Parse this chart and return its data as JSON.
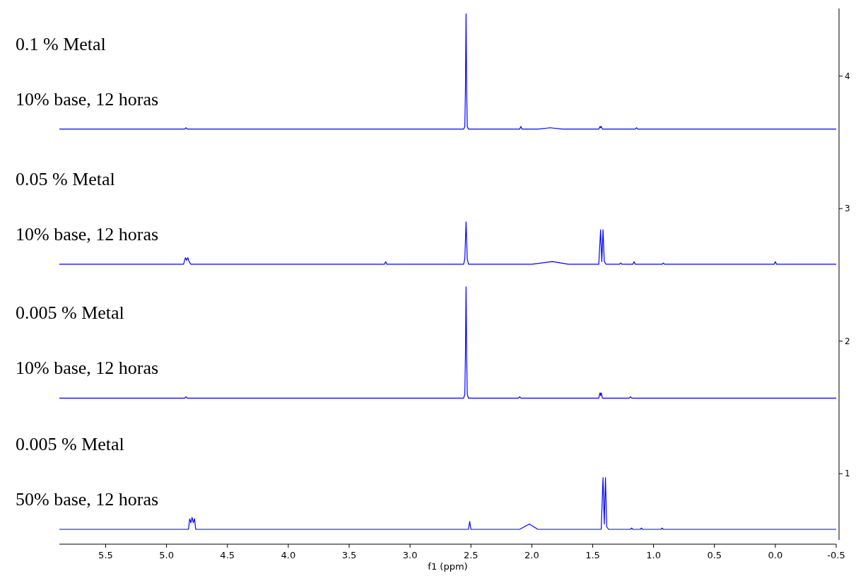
{
  "chart_data": {
    "type": "line",
    "xlabel": "f1 (ppm)",
    "xlim": [
      5.88,
      -0.5
    ],
    "xticks": [
      5.5,
      {
        "value": 5,
        "label": "5.0"
      },
      4.5,
      {
        "value": 4,
        "label": "4.0"
      },
      3.5,
      {
        "value": 3,
        "label": "3.0"
      },
      2.5,
      {
        "value": 2,
        "label": "2.0"
      },
      1.5,
      {
        "value": 1,
        "label": "1.0"
      },
      0.5,
      {
        "value": 0,
        "label": "0.0"
      },
      -0.5
    ],
    "ylim": [
      0.5,
      4.51
    ],
    "yticks": [
      1,
      2,
      3,
      4
    ],
    "marker": "none",
    "line_style": "solid",
    "annotations": [
      "0.1 % Metal",
      "10% base, 12 horas",
      "0.05 % Metal",
      "10% base, 12 horas",
      "0.005 % Metal",
      "10% base, 12 horas",
      "0.005 % Metal",
      "50% base, 12 horas"
    ],
    "series": [
      {
        "color": "#0000ff",
        "x": [
          5.88,
          4.85,
          4.84,
          4.83,
          2.56,
          2.55,
          2.545,
          2.54,
          2.535,
          2.53,
          2.52,
          2.1,
          2.09,
          2.08,
          1.95,
          1.85,
          1.75,
          1.45,
          1.44,
          1.435,
          1.43,
          1.425,
          1.42,
          1.15,
          1.14,
          1.13,
          -0.5
        ],
        "values": [
          3.6,
          3.6,
          3.61,
          3.6,
          3.6,
          3.62,
          3.9,
          4.47,
          3.9,
          3.62,
          3.6,
          3.6,
          3.62,
          3.6,
          3.6,
          3.61,
          3.6,
          3.6,
          3.62,
          3.61,
          3.62,
          3.61,
          3.6,
          3.6,
          3.61,
          3.6,
          3.6
        ]
      },
      {
        "color": "#0000ff",
        "x": [
          5.88,
          4.86,
          4.845,
          4.835,
          4.825,
          4.815,
          4.8,
          3.21,
          3.2,
          3.19,
          2.56,
          2.55,
          2.54,
          2.53,
          2.52,
          2.0,
          1.83,
          1.7,
          1.45,
          1.435,
          1.425,
          1.415,
          1.405,
          1.39,
          1.28,
          1.27,
          1.26,
          1.17,
          1.16,
          1.15,
          0.93,
          0.92,
          0.91,
          0.01,
          0.0,
          -0.01,
          -0.5
        ],
        "values": [
          2.58,
          2.58,
          2.63,
          2.61,
          2.63,
          2.6,
          2.58,
          2.58,
          2.6,
          2.58,
          2.58,
          2.62,
          2.9,
          2.62,
          2.58,
          2.58,
          2.6,
          2.58,
          2.58,
          2.84,
          2.6,
          2.84,
          2.6,
          2.58,
          2.58,
          2.59,
          2.58,
          2.58,
          2.6,
          2.58,
          2.58,
          2.59,
          2.58,
          2.58,
          2.6,
          2.58,
          2.58
        ]
      },
      {
        "color": "#0000ff",
        "x": [
          5.88,
          4.85,
          4.84,
          4.83,
          2.56,
          2.55,
          2.545,
          2.54,
          2.535,
          2.53,
          2.52,
          2.11,
          2.1,
          2.09,
          1.45,
          1.44,
          1.435,
          1.43,
          1.42,
          1.2,
          1.19,
          1.18,
          -0.5
        ],
        "values": [
          1.57,
          1.57,
          1.58,
          1.57,
          1.57,
          1.6,
          1.9,
          2.41,
          1.9,
          1.6,
          1.57,
          1.57,
          1.58,
          1.57,
          1.57,
          1.61,
          1.59,
          1.61,
          1.57,
          1.57,
          1.58,
          1.57,
          1.57
        ]
      },
      {
        "color": "#0000ff",
        "x": [
          5.88,
          4.82,
          4.81,
          4.8,
          4.79,
          4.78,
          4.77,
          4.76,
          2.52,
          2.51,
          2.5,
          2.1,
          2.02,
          1.95,
          1.43,
          1.415,
          1.405,
          1.395,
          1.385,
          1.37,
          1.19,
          1.18,
          1.17,
          1.11,
          1.1,
          1.09,
          0.94,
          0.93,
          0.92,
          -0.5
        ],
        "values": [
          0.58,
          0.58,
          0.66,
          0.63,
          0.67,
          0.63,
          0.66,
          0.58,
          0.58,
          0.64,
          0.58,
          0.58,
          0.62,
          0.58,
          0.58,
          0.97,
          0.62,
          0.97,
          0.6,
          0.58,
          0.58,
          0.59,
          0.58,
          0.58,
          0.59,
          0.58,
          0.58,
          0.59,
          0.58,
          0.58
        ]
      }
    ]
  }
}
